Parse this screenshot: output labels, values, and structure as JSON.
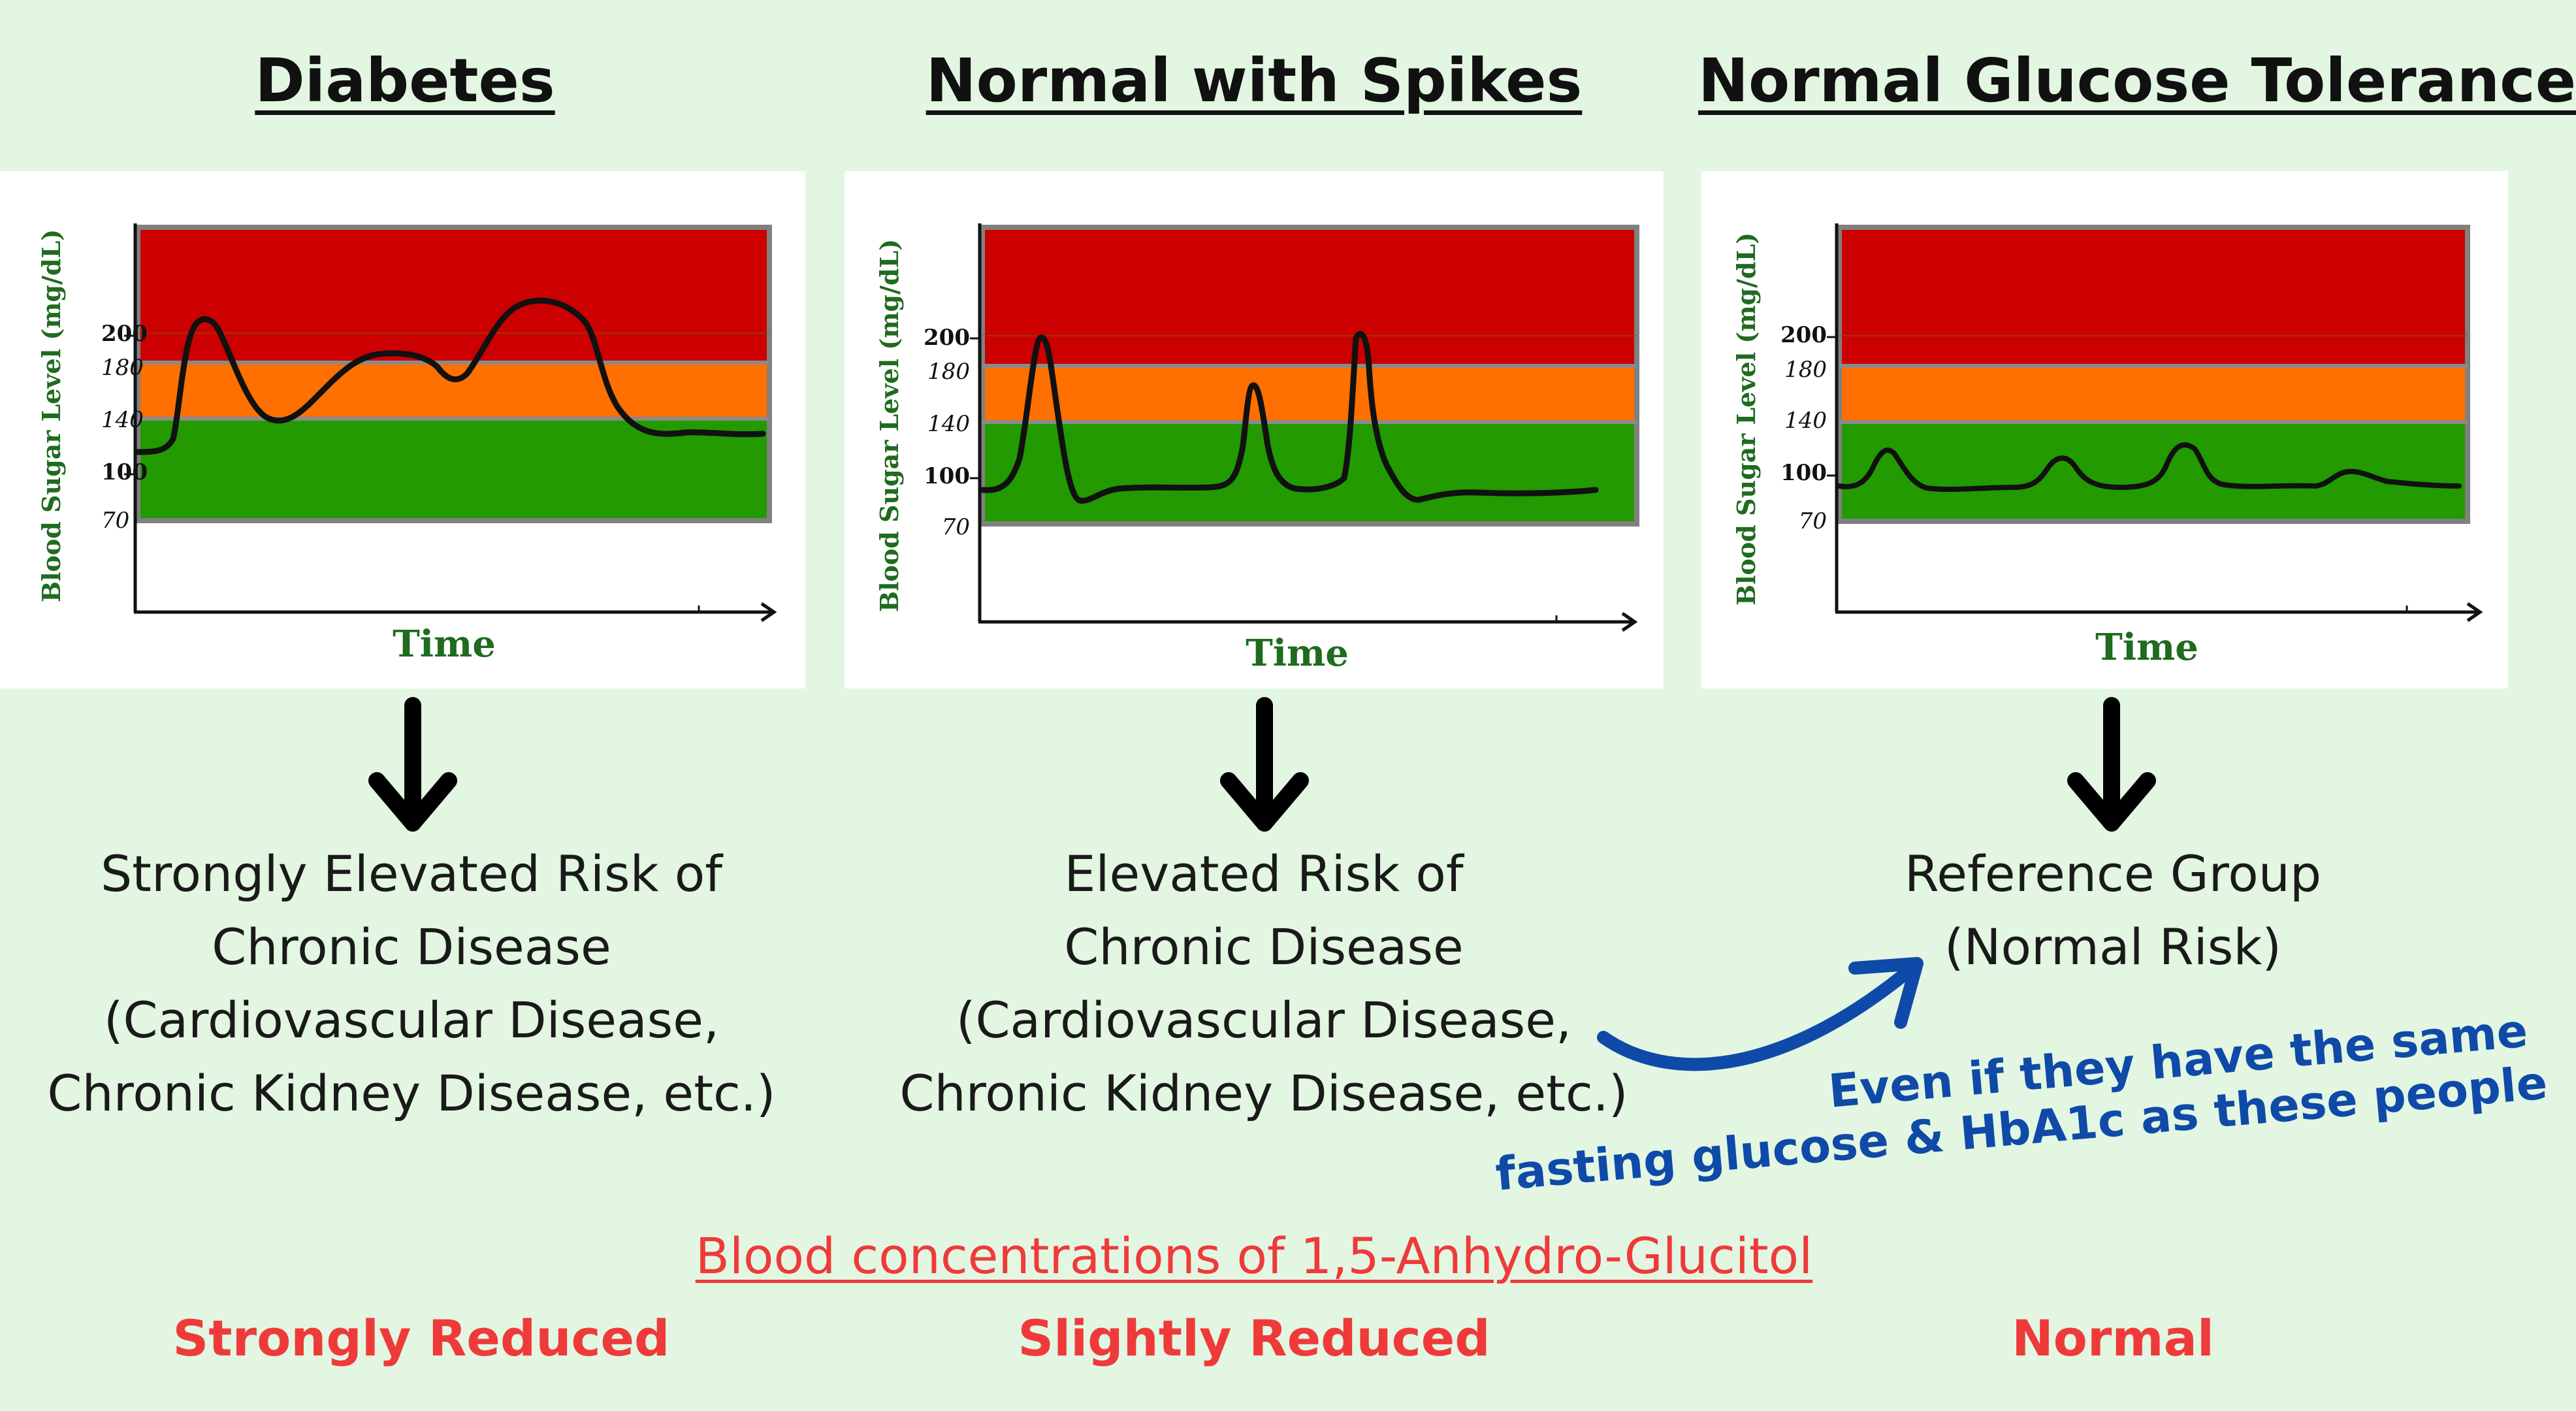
{
  "columns": [
    {
      "title": "Diabetes",
      "chart": {
        "ylabel": "Blood Sugar Level (mg/dL)",
        "xlabel": "Time",
        "ticks": [
          "200",
          "180",
          "140",
          "100",
          "70"
        ]
      },
      "risk_lines": [
        "Strongly Elevated Risk of",
        "Chronic Disease",
        "(Cardiovascular Disease,",
        "Chronic Kidney Disease, etc.)"
      ],
      "level": "Strongly Reduced"
    },
    {
      "title": "Normal with Spikes",
      "chart": {
        "ylabel": "Blood Sugar Level (mg/dL)",
        "xlabel": "Time",
        "ticks": [
          "200",
          "180",
          "140",
          "100",
          "70"
        ]
      },
      "risk_lines": [
        "Elevated Risk of",
        "Chronic Disease",
        "(Cardiovascular Disease,",
        "Chronic Kidney Disease, etc.)"
      ],
      "level": "Slightly Reduced"
    },
    {
      "title": "Normal Glucose Tolerance",
      "chart": {
        "ylabel": "Blood Sugar Level (mg/dL)",
        "xlabel": "Time",
        "ticks": [
          "200",
          "180",
          "140",
          "100",
          "70"
        ]
      },
      "risk_lines": [
        "Reference Group",
        "(Normal Risk)"
      ],
      "level": "Normal"
    }
  ],
  "note": {
    "line1": "Even if they have the same",
    "line2": "fasting glucose & HbA1c as these people"
  },
  "marker_title": "Blood concentrations of 1,5-Anhydro-Glucitol",
  "colors": {
    "background": "#e2f6e2",
    "zone_high": "#cc0000",
    "zone_mid": "#ff7000",
    "zone_normal": "#229a00",
    "axis_label": "#1f6b1f",
    "note": "#0f4aa8",
    "marker": "#ef3a3a"
  }
}
